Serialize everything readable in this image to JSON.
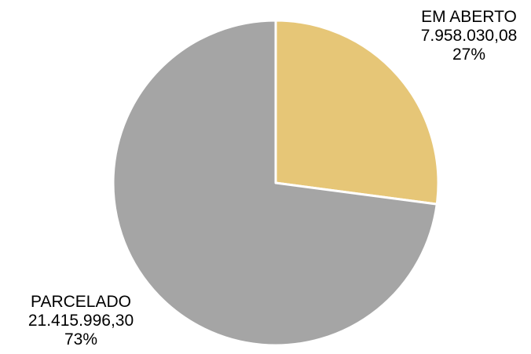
{
  "chart_data": {
    "type": "pie",
    "slices": [
      {
        "label": "EM ABERTO",
        "value": 7958030.08,
        "value_text": "7.958.030,08",
        "percent_text": "27%",
        "color": "#E6C677"
      },
      {
        "label": "PARCELADO",
        "value": 21415996.3,
        "value_text": "21.415.996,30",
        "percent_text": "73%",
        "color": "#A5A5A5"
      }
    ],
    "start_angle_deg": 0,
    "direction": "clockwise",
    "slice_border_color": "#FFFFFF",
    "legend": false
  }
}
